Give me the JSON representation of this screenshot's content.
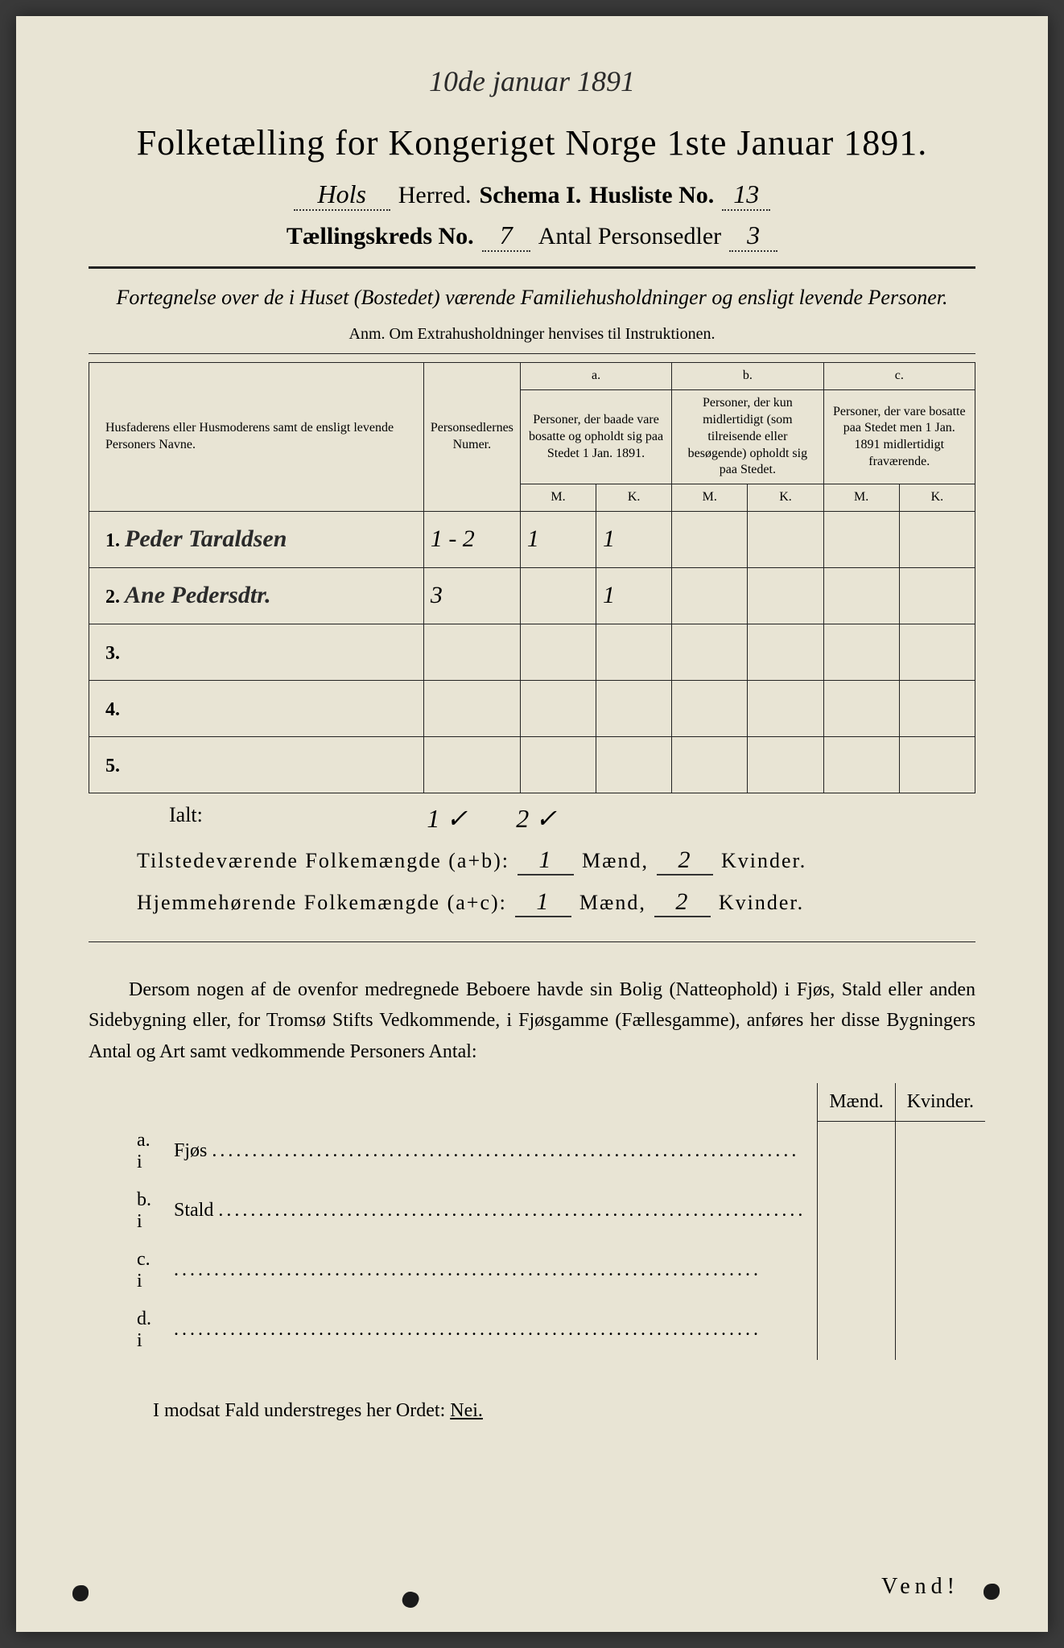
{
  "top_date": "10de januar 1891",
  "title": "Folketælling for Kongeriget Norge 1ste Januar 1891.",
  "header": {
    "herred_value": "Hols",
    "herred_label": "Herred.",
    "schema_label": "Schema I.",
    "husliste_label": "Husliste No.",
    "husliste_value": "13",
    "kreds_label": "Tællingskreds No.",
    "kreds_value": "7",
    "antal_label": "Antal Personsedler",
    "antal_value": "3"
  },
  "subtitle": "Fortegnelse over de i Huset (Bostedet) værende Familiehusholdninger og ensligt levende Personer.",
  "anm": "Anm. Om Extrahusholdninger henvises til Instruktionen.",
  "table": {
    "col_names": "Husfaderens eller Husmoderens samt de ensligt levende Personers Navne.",
    "col_numer": "Personsedlernes Numer.",
    "col_a_letter": "a.",
    "col_a": "Personer, der baade vare bosatte og opholdt sig paa Stedet 1 Jan. 1891.",
    "col_b_letter": "b.",
    "col_b": "Personer, der kun midlertidigt (som tilreisende eller besøgende) opholdt sig paa Stedet.",
    "col_c_letter": "c.",
    "col_c": "Personer, der vare bosatte paa Stedet men 1 Jan. 1891 midlertidigt fraværende.",
    "m": "M.",
    "k": "K.",
    "rows": [
      {
        "n": "1.",
        "name": "Peder Taraldsen",
        "num": "1 - 2",
        "am": "1",
        "ak": "1",
        "bm": "",
        "bk": "",
        "cm": "",
        "ck": ""
      },
      {
        "n": "2.",
        "name": "Ane Pedersdtr.",
        "num": "3",
        "am": "",
        "ak": "1",
        "bm": "",
        "bk": "",
        "cm": "",
        "ck": ""
      },
      {
        "n": "3.",
        "name": "",
        "num": "",
        "am": "",
        "ak": "",
        "bm": "",
        "bk": "",
        "cm": "",
        "ck": ""
      },
      {
        "n": "4.",
        "name": "",
        "num": "",
        "am": "",
        "ak": "",
        "bm": "",
        "bk": "",
        "cm": "",
        "ck": ""
      },
      {
        "n": "5.",
        "name": "",
        "num": "",
        "am": "",
        "ak": "",
        "bm": "",
        "bk": "",
        "cm": "",
        "ck": ""
      }
    ]
  },
  "ialt": {
    "label": "Ialt:",
    "v1": "1 ✓",
    "v2": "2 ✓"
  },
  "totals": {
    "line1_label": "Tilstedeværende Folkemængde (a+b):",
    "line1_m": "1",
    "line1_k": "2",
    "line2_label": "Hjemmehørende Folkemængde (a+c):",
    "line2_m": "1",
    "line2_k": "2",
    "maend": "Mænd,",
    "kvinder": "Kvinder."
  },
  "paragraph": "Dersom nogen af de ovenfor medregnede Beboere havde sin Bolig (Natteophold) i Fjøs, Stald eller anden Sidebygning eller, for Tromsø Stifts Vedkommende, i Fjøsgamme (Fællesgamme), anføres her disse Bygningers Antal og Art samt vedkommende Personers Antal:",
  "bldg": {
    "maend": "Mænd.",
    "kvinder": "Kvinder.",
    "rows": [
      {
        "lbl": "a.  i",
        "type": "Fjøs"
      },
      {
        "lbl": "b.  i",
        "type": "Stald"
      },
      {
        "lbl": "c.  i",
        "type": ""
      },
      {
        "lbl": "d.  i",
        "type": ""
      }
    ]
  },
  "nei_line_prefix": "I modsat Fald understreges her Ordet: ",
  "nei_word": "Nei.",
  "vend": "Vend!",
  "colors": {
    "paper": "#e8e4d4",
    "ink": "#222222",
    "background": "#3a3a3a"
  }
}
